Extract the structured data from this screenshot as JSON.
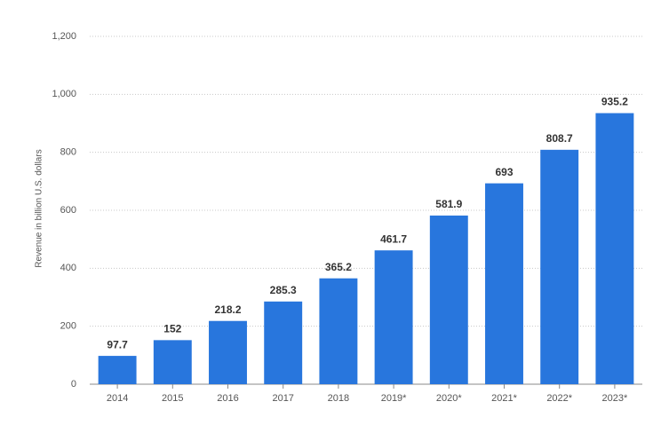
{
  "chart_data": {
    "type": "bar",
    "y_label": "Revenue in billion U.S. dollars",
    "categories": [
      "2014",
      "2015",
      "2016",
      "2017",
      "2018",
      "2019*",
      "2020*",
      "2021*",
      "2022*",
      "2023*"
    ],
    "values": [
      97.7,
      152,
      218.2,
      285.3,
      365.2,
      461.7,
      581.9,
      693,
      808.7,
      935.2
    ],
    "color": "#2876dd",
    "ylim": [
      0,
      1200
    ],
    "yticks": [
      0,
      200,
      400,
      600,
      800,
      {
        "value": 1000,
        "label": "1,000"
      },
      {
        "value": 1200,
        "label": "1,200"
      }
    ],
    "grid": true
  }
}
